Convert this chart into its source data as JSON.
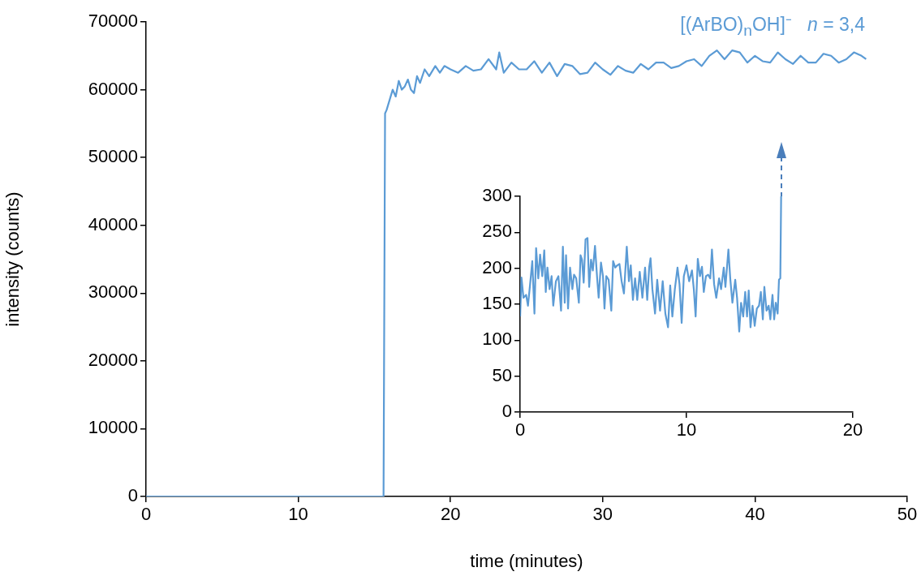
{
  "chart_data": [
    {
      "type": "line",
      "xlabel": "time (minutes)",
      "ylabel": "intensity (counts)",
      "xlim": [
        0,
        50
      ],
      "xticks": [
        0,
        10,
        20,
        30,
        40,
        50
      ],
      "ylim": [
        0,
        70000
      ],
      "yticks": [
        0,
        10000,
        20000,
        30000,
        40000,
        50000,
        60000,
        70000
      ],
      "grid": false,
      "legend": false,
      "marker": "none",
      "line_style": "solid",
      "series": [
        {
          "name": "[(ArBO)$_{n}$OH]⁻  n = 3,4",
          "color": "#5b9bd5",
          "x": [
            0,
            15.6,
            15.7,
            15.8,
            16.0,
            16.2,
            16.4,
            16.6,
            16.8,
            17.0,
            17.2,
            17.4,
            17.6,
            17.8,
            18.0,
            18.3,
            18.6,
            19.0,
            19.3,
            19.6,
            20.0,
            20.5,
            21.0,
            21.5,
            22.0,
            22.5,
            23.0,
            23.2,
            23.5,
            24.0,
            24.5,
            25.0,
            25.5,
            26.0,
            26.5,
            27.0,
            27.5,
            28.0,
            28.5,
            29.0,
            29.5,
            30.0,
            30.5,
            31.0,
            31.5,
            32.0,
            32.5,
            33.0,
            33.5,
            34.0,
            34.5,
            35.0,
            35.5,
            36.0,
            36.5,
            37.0,
            37.5,
            38.0,
            38.5,
            39.0,
            39.5,
            40.0,
            40.5,
            41.0,
            41.5,
            42.0,
            42.5,
            43.0,
            43.5,
            44.0,
            44.5,
            45.0,
            45.5,
            46.0,
            46.5,
            47.0,
            47.3
          ],
          "values": [
            0,
            0,
            56500,
            57000,
            58500,
            60000,
            59000,
            61300,
            60000,
            60500,
            61500,
            60000,
            59500,
            62000,
            61000,
            63000,
            62000,
            63500,
            62500,
            63500,
            63000,
            62500,
            63500,
            62800,
            63000,
            64500,
            63000,
            65500,
            62500,
            64000,
            63000,
            63000,
            64200,
            62500,
            64000,
            62000,
            63800,
            63500,
            62300,
            62500,
            64000,
            63000,
            62200,
            63500,
            62800,
            62500,
            63800,
            63000,
            64000,
            64000,
            63200,
            63500,
            64200,
            64500,
            63500,
            65000,
            65800,
            64500,
            65800,
            65500,
            64000,
            65000,
            64200,
            64000,
            65500,
            64500,
            63800,
            65000,
            64000,
            64000,
            65300,
            65000,
            64000,
            64500,
            65500,
            65000,
            64500
          ]
        }
      ]
    },
    {
      "type": "line",
      "xlim": [
        0,
        20
      ],
      "xticks": [
        0,
        10,
        20
      ],
      "ylim": [
        0,
        300
      ],
      "yticks": [
        0,
        50,
        100,
        150,
        200,
        250,
        300
      ],
      "grid": false,
      "legend": false,
      "marker": "none",
      "line_style": "solid",
      "series": [
        {
          "color": "#5b9bd5",
          "x": [
            0,
            0.08,
            0.2,
            0.36,
            0.47,
            0.6,
            0.73,
            0.86,
            0.96,
            1.09,
            1.2,
            1.33,
            1.45,
            1.54,
            1.64,
            1.77,
            1.89,
            1.99,
            2.15,
            2.3,
            2.46,
            2.57,
            2.68,
            2.76,
            2.88,
            3.0,
            3.14,
            3.24,
            3.37,
            3.53,
            3.63,
            3.72,
            3.82,
            3.93,
            4.05,
            4.15,
            4.26,
            4.37,
            4.5,
            4.63,
            4.72,
            4.86,
            4.98,
            5.07,
            5.18,
            5.32,
            5.48,
            5.59,
            5.72,
            5.84,
            5.97,
            6.1,
            6.24,
            6.41,
            6.54,
            6.65,
            6.78,
            6.91,
            7.04,
            7.19,
            7.35,
            7.51,
            7.64,
            7.76,
            7.84,
            7.95,
            8.11,
            8.24,
            8.41,
            8.57,
            8.73,
            8.89,
            9.02,
            9.15,
            9.3,
            9.46,
            9.58,
            9.71,
            9.84,
            10.0,
            10.16,
            10.33,
            10.44,
            10.55,
            10.68,
            10.81,
            10.93,
            11.04,
            11.17,
            11.3,
            11.43,
            11.53,
            11.66,
            11.79,
            11.96,
            12.08,
            12.24,
            12.34,
            12.52,
            12.63,
            12.76,
            12.93,
            13.04,
            13.17,
            13.28,
            13.41,
            13.53,
            13.64,
            13.74,
            13.85,
            13.97,
            14.1,
            14.23,
            14.36,
            14.47,
            14.59,
            14.68,
            14.81,
            14.94,
            15.04,
            15.17,
            15.27,
            15.37,
            15.48,
            15.56,
            15.64,
            15.69
          ],
          "values": [
            133,
            187,
            159,
            163,
            148,
            178,
            210,
            137,
            228,
            186,
            219,
            189,
            225,
            167,
            201,
            171,
            189,
            148,
            182,
            189,
            141,
            230,
            152,
            218,
            144,
            201,
            171,
            191,
            186,
            152,
            218,
            212,
            180,
            240,
            242,
            174,
            212,
            197,
            231,
            186,
            159,
            208,
            189,
            144,
            189,
            184,
            141,
            210,
            201,
            204,
            206,
            182,
            165,
            230,
            182,
            204,
            156,
            186,
            156,
            195,
            159,
            201,
            156,
            202,
            214,
            171,
            137,
            184,
            141,
            182,
            137,
            118,
            176,
            133,
            171,
            201,
            178,
            124,
            189,
            204,
            182,
            197,
            171,
            133,
            213,
            189,
            202,
            167,
            189,
            191,
            186,
            226,
            178,
            159,
            186,
            171,
            201,
            174,
            226,
            186,
            152,
            184,
            159,
            112,
            152,
            133,
            167,
            133,
            169,
            118,
            148,
            120,
            144,
            148,
            167,
            129,
            174,
            141,
            148,
            129,
            163,
            129,
            152,
            137,
            184,
            186,
            300
          ]
        }
      ]
    }
  ]
}
